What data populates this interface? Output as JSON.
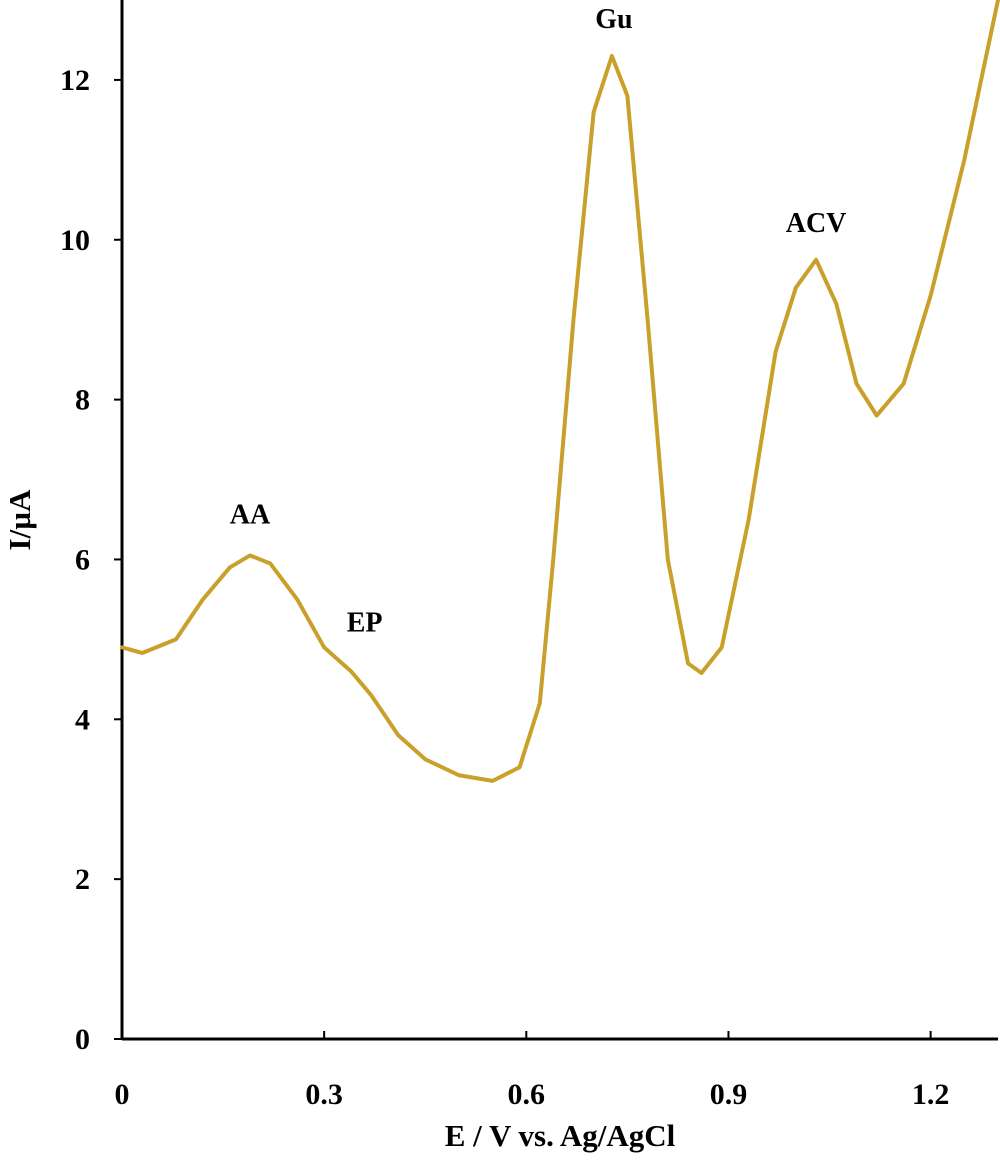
{
  "chart_data": {
    "type": "line",
    "x_label": "E / V vs. Ag/AgCl",
    "y_label": "I/µA",
    "xlim": [
      0,
      1.3
    ],
    "ylim": [
      0,
      13
    ],
    "xticks": [
      0,
      0.3,
      0.6,
      0.9,
      1.2
    ],
    "yticks": [
      0,
      2,
      4,
      6,
      8,
      10,
      12
    ],
    "grid": false,
    "series": [
      {
        "color": "#c9a02a",
        "x": [
          0,
          0.03,
          0.08,
          0.12,
          0.16,
          0.19,
          0.22,
          0.26,
          0.3,
          0.34,
          0.37,
          0.41,
          0.45,
          0.5,
          0.55,
          0.59,
          0.62,
          0.64,
          0.67,
          0.7,
          0.727,
          0.75,
          0.78,
          0.81,
          0.84,
          0.86,
          0.89,
          0.93,
          0.97,
          1.0,
          1.03,
          1.06,
          1.09,
          1.12,
          1.16,
          1.2,
          1.25,
          1.3
        ],
        "values": [
          4.9,
          4.83,
          5.0,
          5.5,
          5.9,
          6.05,
          5.95,
          5.5,
          4.9,
          4.6,
          4.3,
          3.8,
          3.5,
          3.3,
          3.23,
          3.4,
          4.2,
          6.0,
          9.0,
          11.6,
          12.3,
          11.8,
          9.0,
          6.0,
          4.7,
          4.58,
          4.9,
          6.5,
          8.6,
          9.4,
          9.75,
          9.2,
          8.2,
          7.8,
          8.2,
          9.3,
          11.0,
          13.0
        ]
      }
    ],
    "annotations": [
      {
        "text": "AA",
        "x": 0.19,
        "y": 6.45
      },
      {
        "text": "EP",
        "x": 0.36,
        "y": 5.1
      },
      {
        "text": "Gu",
        "x": 0.73,
        "y": 12.65
      },
      {
        "text": "ACV",
        "x": 1.03,
        "y": 10.1
      }
    ]
  }
}
